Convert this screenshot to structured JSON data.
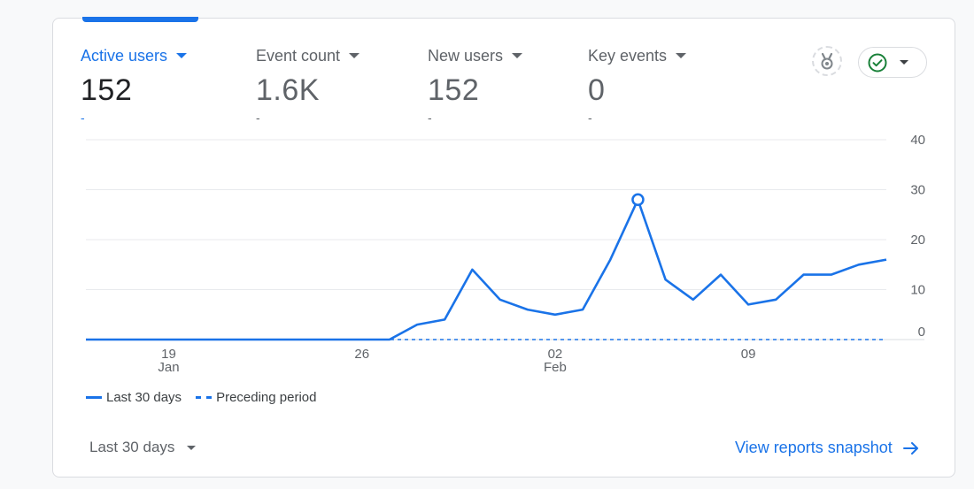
{
  "metrics": [
    {
      "label": "Active users",
      "value": "152",
      "delta": "-",
      "active": true
    },
    {
      "label": "Event count",
      "value": "1.6K",
      "delta": "-",
      "active": false
    },
    {
      "label": "New users",
      "value": "152",
      "delta": "-",
      "active": false
    },
    {
      "label": "Key events",
      "value": "0",
      "delta": "-",
      "active": false
    }
  ],
  "header_icons": {
    "insight": "insights-badge-icon",
    "status": "check-circle-icon",
    "status_color": "#188038"
  },
  "colors": {
    "accent": "#1a73e8",
    "grid": "#e8eaed",
    "text_muted": "#5f6368"
  },
  "chart_data": {
    "type": "line",
    "x": [
      "Jan 16",
      "Jan 17",
      "Jan 18",
      "Jan 19",
      "Jan 20",
      "Jan 21",
      "Jan 22",
      "Jan 23",
      "Jan 24",
      "Jan 25",
      "Jan 26",
      "Jan 27",
      "Jan 28",
      "Jan 29",
      "Jan 30",
      "Jan 31",
      "Feb 1",
      "Feb 2",
      "Feb 3",
      "Feb 4",
      "Feb 5",
      "Feb 6",
      "Feb 7",
      "Feb 8",
      "Feb 9",
      "Feb 10",
      "Feb 11",
      "Feb 12",
      "Feb 13",
      "Feb 14"
    ],
    "x_tick_labels": [
      {
        "index": 3,
        "day": "19",
        "month": "Jan"
      },
      {
        "index": 10,
        "day": "26",
        "month": ""
      },
      {
        "index": 17,
        "day": "02",
        "month": "Feb"
      },
      {
        "index": 24,
        "day": "09",
        "month": ""
      }
    ],
    "y_ticks": [
      "0",
      "10",
      "20",
      "30",
      "40"
    ],
    "ylim": [
      0,
      40
    ],
    "series": [
      {
        "name": "Last 30 days",
        "style": "solid",
        "values": [
          0,
          0,
          0,
          0,
          0,
          0,
          0,
          0,
          0,
          0,
          0,
          0,
          3,
          4,
          14,
          8,
          6,
          5,
          6,
          16,
          28,
          12,
          8,
          13,
          7,
          8,
          13,
          13,
          15,
          16
        ]
      },
      {
        "name": "Preceding period",
        "style": "dashed",
        "values": [
          0,
          0,
          0,
          0,
          0,
          0,
          0,
          0,
          0,
          0,
          0,
          0,
          0,
          0,
          0,
          0,
          0,
          0,
          0,
          0,
          0,
          0,
          0,
          0,
          0,
          0,
          0,
          0,
          0,
          0
        ]
      }
    ],
    "highlight_index": 20,
    "grid": true,
    "legend_position": "bottom-left"
  },
  "footer": {
    "date_range": "Last 30 days",
    "view_link": "View reports snapshot"
  }
}
